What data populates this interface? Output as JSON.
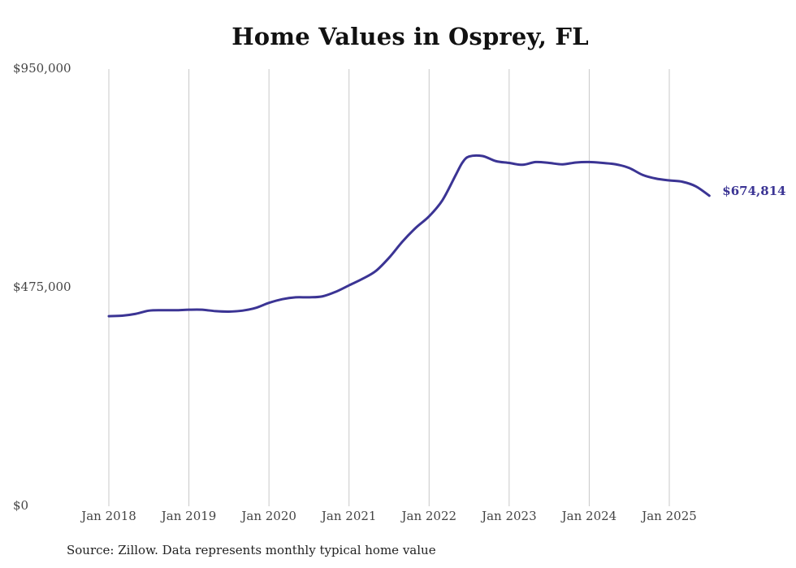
{
  "chart_data": {
    "type": "line",
    "title": "Home Values in Osprey, FL",
    "xlabel": "",
    "ylabel": "",
    "ylim": [
      0,
      950000
    ],
    "y_ticks": [
      {
        "value": 0,
        "label": "$0"
      },
      {
        "value": 475000,
        "label": "$475,000"
      },
      {
        "value": 950000,
        "label": "$950,000"
      }
    ],
    "x_ticks": [
      {
        "value": "2018-01",
        "label": "Jan 2018"
      },
      {
        "value": "2019-01",
        "label": "Jan 2019"
      },
      {
        "value": "2020-01",
        "label": "Jan 2020"
      },
      {
        "value": "2021-01",
        "label": "Jan 2021"
      },
      {
        "value": "2022-01",
        "label": "Jan 2022"
      },
      {
        "value": "2023-01",
        "label": "Jan 2023"
      },
      {
        "value": "2024-01",
        "label": "Jan 2024"
      },
      {
        "value": "2025-01",
        "label": "Jan 2025"
      }
    ],
    "grid": {
      "vertical": true,
      "horizontal": false
    },
    "legend": "none",
    "line_color": "#3b3494",
    "series": [
      {
        "x": [
          "2018-01",
          "2018-03",
          "2018-05",
          "2018-07",
          "2018-09",
          "2018-11",
          "2019-01",
          "2019-03",
          "2019-05",
          "2019-07",
          "2019-09",
          "2019-11",
          "2020-01",
          "2020-03",
          "2020-05",
          "2020-07",
          "2020-09",
          "2020-11",
          "2021-01",
          "2021-03",
          "2021-05",
          "2021-07",
          "2021-09",
          "2021-11",
          "2022-01",
          "2022-03",
          "2022-05",
          "2022-06",
          "2022-07",
          "2022-09",
          "2022-11",
          "2023-01",
          "2023-03",
          "2023-05",
          "2023-07",
          "2023-09",
          "2023-11",
          "2024-01",
          "2024-03",
          "2024-05",
          "2024-07",
          "2024-09",
          "2024-11",
          "2025-01",
          "2025-03",
          "2025-05",
          "2025-07"
        ],
        "values": [
          413000,
          414000,
          418000,
          425000,
          426000,
          426000,
          427000,
          427000,
          424000,
          423000,
          425000,
          431000,
          442000,
          450000,
          454000,
          454000,
          456000,
          466000,
          480000,
          494000,
          511000,
          540000,
          575000,
          605000,
          630000,
          665000,
          720000,
          747000,
          760000,
          761000,
          750000,
          746000,
          742000,
          748000,
          746000,
          743000,
          747000,
          748000,
          746000,
          743000,
          735000,
          720000,
          712000,
          708000,
          705000,
          695000,
          674814
        ]
      }
    ],
    "end_label": "$674,814",
    "source": "Source: Zillow. Data represents monthly typical home value"
  }
}
